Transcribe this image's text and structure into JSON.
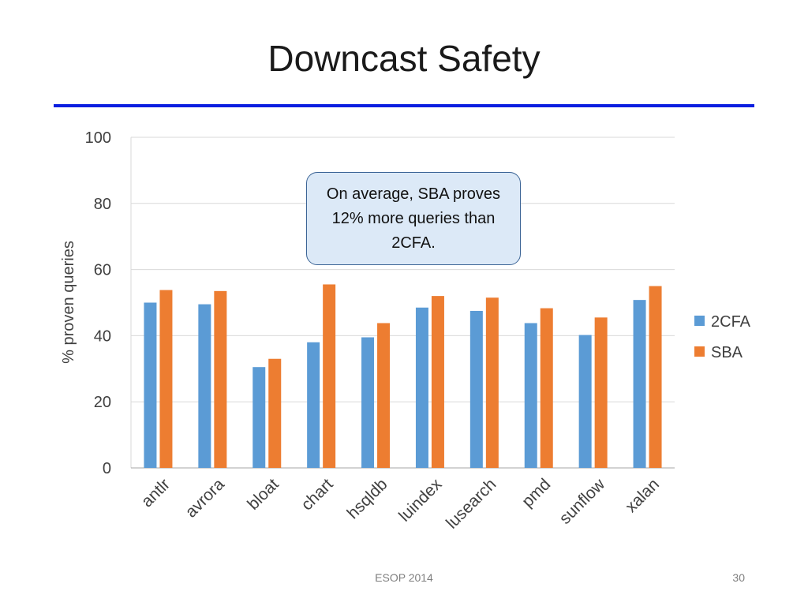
{
  "slide": {
    "title": "Downcast Safety",
    "callout": "On average, SBA proves 12% more queries than 2CFA.",
    "footer": "ESOP 2014",
    "page_number": "30"
  },
  "colors": {
    "title_rule": "#0a1ee0",
    "series_2cfa": "#5b9bd5",
    "series_sba": "#ed7d31",
    "gridline": "#d9d9d9",
    "axis_text": "#404040"
  },
  "chart_data": {
    "type": "bar",
    "title": "",
    "xlabel": "",
    "ylabel": "% proven queries",
    "ylim": [
      0,
      100
    ],
    "yticks": [
      0,
      20,
      40,
      60,
      80,
      100
    ],
    "grid": true,
    "legend_position": "right",
    "categories": [
      "antlr",
      "avrora",
      "bloat",
      "chart",
      "hsqldb",
      "luindex",
      "lusearch",
      "pmd",
      "sunflow",
      "xalan"
    ],
    "series": [
      {
        "name": "2CFA",
        "values": [
          50,
          49.5,
          30.5,
          38,
          39.5,
          48.5,
          47.5,
          43.8,
          40.2,
          50.8
        ]
      },
      {
        "name": "SBA",
        "values": [
          53.8,
          53.5,
          33,
          55.5,
          43.8,
          52,
          51.5,
          48.3,
          45.5,
          55
        ]
      }
    ]
  }
}
